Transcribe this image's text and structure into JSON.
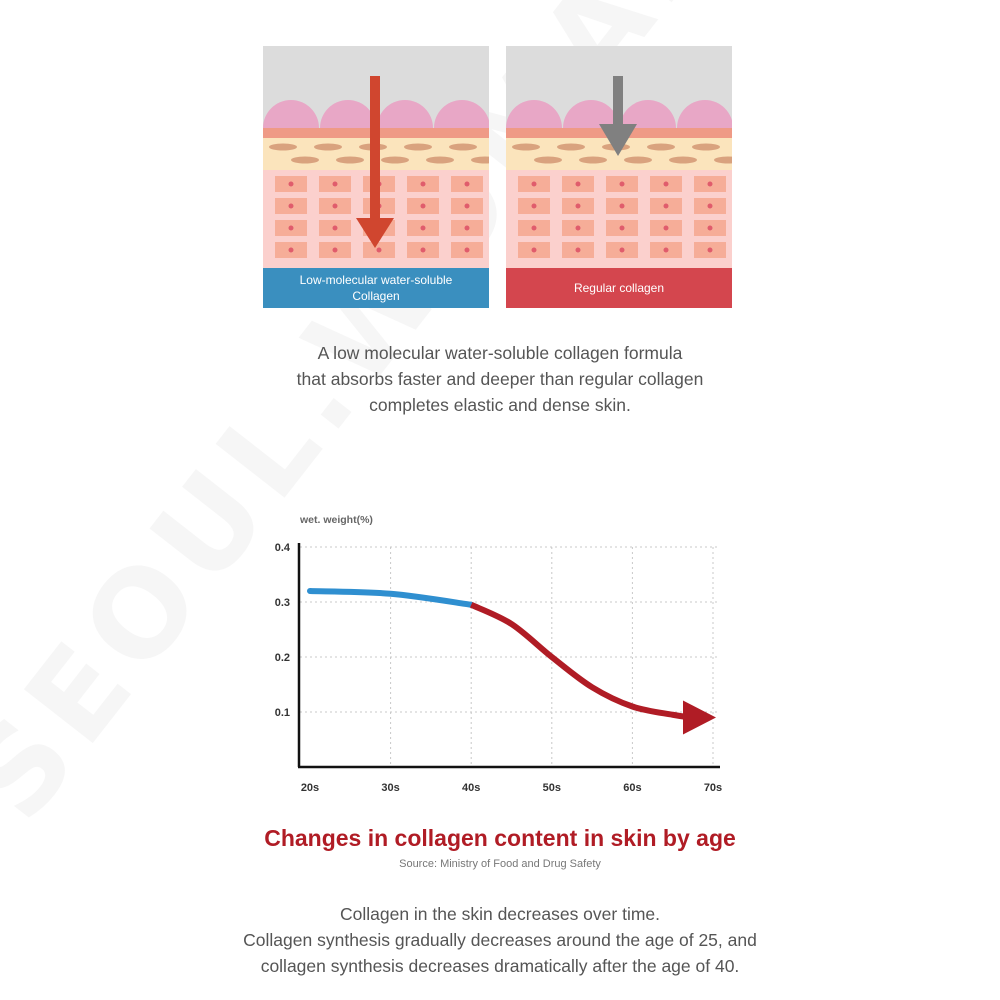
{
  "watermark": "SEOUL.WOMAN",
  "panels": [
    {
      "label": "Low-molecular water-soluble Collagen",
      "color": "#3a8fbf",
      "arrow_color": "#d0462f"
    },
    {
      "label": "Regular collagen",
      "color": "#d4464e",
      "arrow_color": "#808080"
    }
  ],
  "caption1": [
    "A low molecular water-soluble collagen formula",
    "that absorbs faster and deeper than regular collagen",
    "completes elastic and dense skin."
  ],
  "chart_data": {
    "type": "line",
    "title": "Changes in collagen content in skin by age",
    "source": "Source: Ministry of Food and Drug Safety",
    "ylabel": "wet. weight(%)",
    "xlabel": "",
    "categories": [
      "20s",
      "30s",
      "40s",
      "50s",
      "60s",
      "70s"
    ],
    "yticks": [
      "0.4",
      "0.3",
      "0.2",
      "0.1"
    ],
    "ylim": [
      0,
      0.4
    ],
    "series": [
      {
        "x": [
          0,
          1,
          2,
          2.5,
          3,
          3.5,
          4,
          4.5,
          5
        ],
        "values": [
          0.32,
          0.315,
          0.295,
          0.26,
          0.2,
          0.145,
          0.11,
          0.095,
          0.09
        ]
      }
    ],
    "colors": {
      "early": "#2f8fd0",
      "late": "#b01c25"
    },
    "grid": true
  },
  "caption2": [
    "Collagen in the skin decreases over time.",
    "Collagen synthesis gradually decreases around the age of 25, and",
    "collagen synthesis decreases dramatically after the age of 40."
  ]
}
